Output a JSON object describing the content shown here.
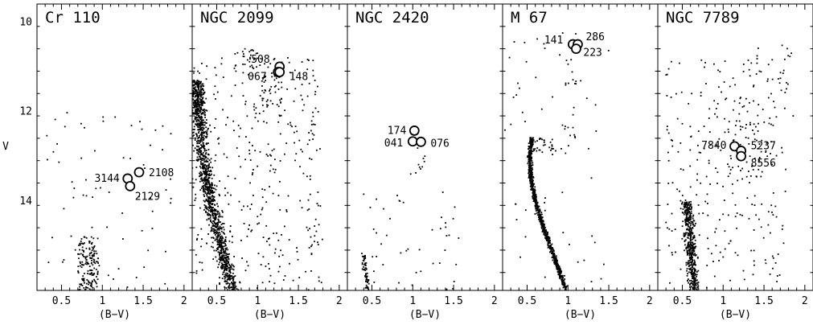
{
  "figure": {
    "y_axis_label": "V",
    "x_axis_label": "(B−V)"
  },
  "chart_data": [
    {
      "type": "scatter",
      "title": "Cr 110",
      "xlabel": "(B−V)",
      "ylabel": "V",
      "xlim": [
        0.2,
        2.1
      ],
      "ylim": [
        16.0,
        9.6
      ],
      "x_ticks": [
        "0.5",
        "1",
        "1.5",
        "2"
      ],
      "y_ticks": [
        "10",
        "12",
        "14"
      ],
      "highlighted": [
        {
          "label": "3144",
          "x": 1.31,
          "y": 13.5
        },
        {
          "label": "2108",
          "x": 1.45,
          "y": 13.36
        },
        {
          "label": "2129",
          "x": 1.34,
          "y": 13.67
        }
      ],
      "field_regions": [
        {
          "x": [
            0.7,
            0.95
          ],
          "y": [
            14.8,
            16.0
          ],
          "count": 170
        },
        {
          "x": [
            0.3,
            1.9
          ],
          "y": [
            12.0,
            16.0
          ],
          "count": 70
        }
      ]
    },
    {
      "type": "scatter",
      "title": "NGC 2099",
      "xlabel": "(B−V)",
      "x_ticks": [
        "0.5",
        "1",
        "1.5",
        "2"
      ],
      "xlim": [
        0.2,
        2.1
      ],
      "ylim": [
        16.0,
        9.6
      ],
      "highlighted": [
        {
          "label": "508",
          "x": 1.27,
          "y": 11.0
        },
        {
          "label": "067",
          "x": 1.25,
          "y": 11.12
        },
        {
          "label": "148",
          "x": 1.27,
          "y": 11.12
        }
      ],
      "main_sequence": [
        {
          "x": 0.25,
          "y": 11.3
        },
        {
          "x": 0.28,
          "y": 12.0
        },
        {
          "x": 0.33,
          "y": 13.0
        },
        {
          "x": 0.42,
          "y": 14.0
        },
        {
          "x": 0.55,
          "y": 15.0
        },
        {
          "x": 0.7,
          "y": 16.0
        }
      ],
      "field_regions": [
        {
          "x": [
            0.2,
            1.8
          ],
          "y": [
            10.8,
            16.0
          ],
          "count": 380
        },
        {
          "x": [
            1.05,
            1.3
          ],
          "y": [
            11.2,
            11.9
          ],
          "count": 40
        },
        {
          "x": [
            0.7,
            1.0
          ],
          "y": [
            10.6,
            11.2
          ],
          "count": 30
        }
      ]
    },
    {
      "type": "scatter",
      "title": "NGC 2420",
      "xlabel": "(B−V)",
      "x_ticks": [
        "0.5",
        "1",
        "1.5",
        "2"
      ],
      "xlim": [
        0.2,
        2.1
      ],
      "ylim": [
        16.0,
        9.6
      ],
      "highlighted": [
        {
          "label": "174",
          "x": 1.02,
          "y": 12.43
        },
        {
          "label": "041",
          "x": 1.0,
          "y": 12.67
        },
        {
          "label": "076",
          "x": 1.1,
          "y": 12.68
        }
      ],
      "main_sequence": [
        {
          "x": 0.4,
          "y": 15.2
        },
        {
          "x": 0.42,
          "y": 15.6
        },
        {
          "x": 0.46,
          "y": 16.0
        }
      ],
      "field_regions": [
        {
          "x": [
            0.4,
            1.6
          ],
          "y": [
            13.8,
            16.0
          ],
          "count": 45
        },
        {
          "x": [
            0.95,
            1.15
          ],
          "y": [
            12.8,
            13.8
          ],
          "count": 10
        }
      ]
    },
    {
      "type": "scatter",
      "title": "M 67",
      "xlabel": "(B−V)",
      "x_ticks": [
        "0.5",
        "1",
        "1.5",
        "2"
      ],
      "xlim": [
        0.2,
        2.1
      ],
      "ylim": [
        16.0,
        9.6
      ],
      "highlighted": [
        {
          "label": "141",
          "x": 1.06,
          "y": 10.5
        },
        {
          "label": "286",
          "x": 1.12,
          "y": 10.5
        },
        {
          "label": "223",
          "x": 1.1,
          "y": 10.6
        }
      ],
      "main_sequence": [
        {
          "x": 0.56,
          "y": 12.6
        },
        {
          "x": 0.53,
          "y": 13.0
        },
        {
          "x": 0.55,
          "y": 13.5
        },
        {
          "x": 0.6,
          "y": 14.0
        },
        {
          "x": 0.68,
          "y": 14.5
        },
        {
          "x": 0.78,
          "y": 15.0
        },
        {
          "x": 0.88,
          "y": 15.5
        },
        {
          "x": 0.98,
          "y": 16.0
        }
      ],
      "field_regions": [
        {
          "x": [
            0.2,
            1.5
          ],
          "y": [
            10.0,
            16.0
          ],
          "count": 60
        },
        {
          "x": [
            0.55,
            0.85
          ],
          "y": [
            12.6,
            12.9
          ],
          "count": 30
        },
        {
          "x": [
            0.95,
            1.1
          ],
          "y": [
            10.8,
            12.6
          ],
          "count": 20
        }
      ]
    },
    {
      "type": "scatter",
      "title": "NGC 7789",
      "xlabel": "(B−V)",
      "x_ticks": [
        "0.5",
        "1",
        "1.5",
        "2"
      ],
      "xlim": [
        0.2,
        2.1
      ],
      "ylim": [
        16.0,
        9.6
      ],
      "highlighted": [
        {
          "label": "7840",
          "x": 1.14,
          "y": 12.78
        },
        {
          "label": "5237",
          "x": 1.22,
          "y": 12.88
        },
        {
          "label": "8556",
          "x": 1.22,
          "y": 13.0
        }
      ],
      "main_sequence": [
        {
          "x": 0.55,
          "y": 14.0
        },
        {
          "x": 0.6,
          "y": 15.0
        },
        {
          "x": 0.65,
          "y": 16.0
        }
      ],
      "field_regions": [
        {
          "x": [
            0.3,
            1.8
          ],
          "y": [
            10.8,
            16.0
          ],
          "count": 260
        },
        {
          "x": [
            1.0,
            1.6
          ],
          "y": [
            12.2,
            13.6
          ],
          "count": 60
        },
        {
          "x": [
            1.4,
            1.9
          ],
          "y": [
            10.5,
            12.2
          ],
          "count": 25
        }
      ]
    }
  ]
}
